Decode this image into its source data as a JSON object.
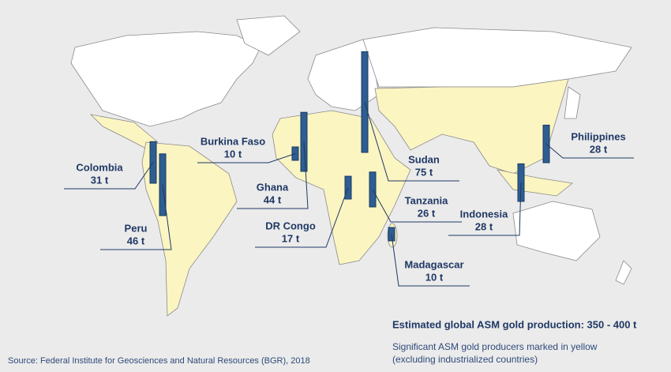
{
  "chart_data": {
    "type": "map-bar",
    "title": "Estimated global ASM gold production: 350 - 400 t",
    "notes": [
      "Significant ASM gold producers marked in yellow",
      "(excluding industrialized countries)"
    ],
    "source": "Source: Federal Institute for Geosciences and Natural Resources (BGR), 2018",
    "categories": [
      "Burkina Faso",
      "Ghana",
      "Sudan",
      "Colombia",
      "Peru",
      "DR Congo",
      "Tanzania",
      "Madagascar",
      "Indonesia",
      "Philippines"
    ],
    "values": [
      10,
      44,
      75,
      31,
      46,
      17,
      26,
      10,
      28,
      28
    ],
    "value_labels": [
      "10 t",
      "44 t",
      "75 t",
      "31 t",
      "46 t",
      "17 t",
      "26 t",
      "10 t",
      "28 t",
      "28 t"
    ],
    "color": "#2e5d91"
  }
}
